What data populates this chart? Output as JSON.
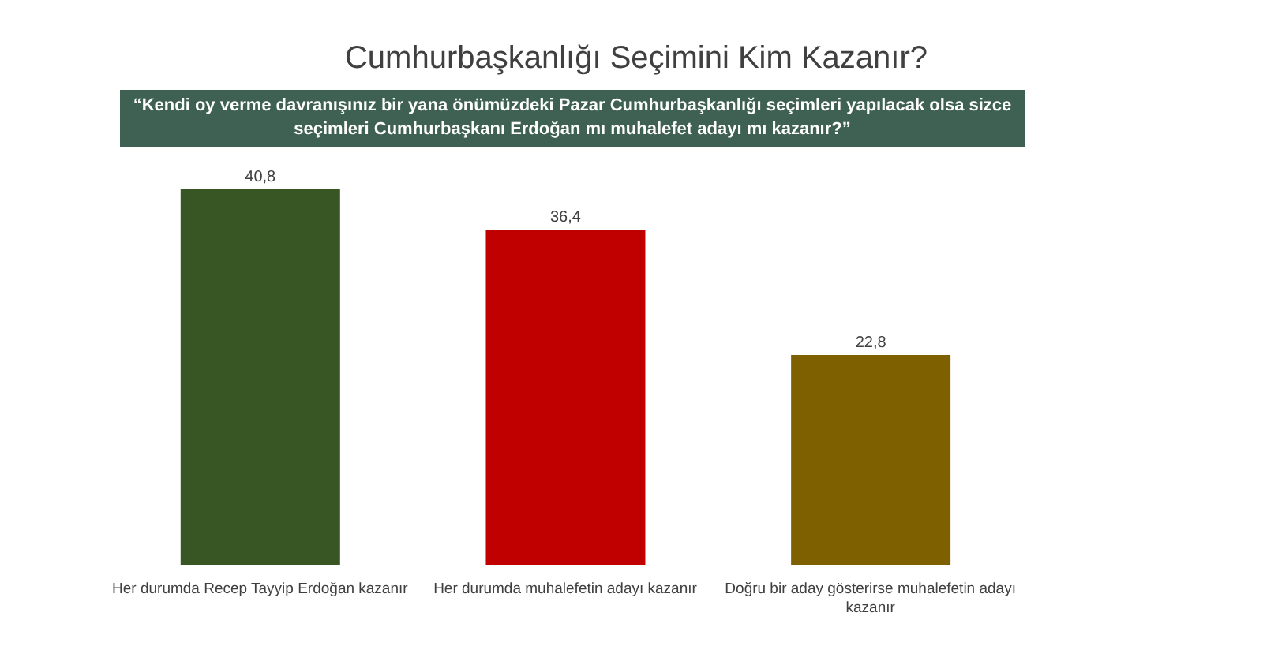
{
  "chart_data": {
    "type": "bar",
    "title": "Cumhurbaşkanlığı Seçimini Kim Kazanır?",
    "subtitle": "“Kendi oy verme davranışınız bir yana önümüzdeki Pazar Cumhurbaşkanlığı seçimleri yapılacak olsa sizce seçimleri Cumhurbaşkanı Erdoğan mı muhalefet adayı mı kazanır?”",
    "categories": [
      "Her durumda Recep Tayyip Erdoğan kazanır",
      "Her durumda muhalefetin adayı kazanır",
      "Doğru bir aday gösterirse muhalefetin adayı kazanır"
    ],
    "values": [
      40.8,
      36.4,
      22.8
    ],
    "colors": [
      "#375623",
      "#c00000",
      "#7f6000"
    ],
    "value_labels": [
      "40,8",
      "36,4",
      "22,8"
    ],
    "grid": false,
    "legend": false
  }
}
